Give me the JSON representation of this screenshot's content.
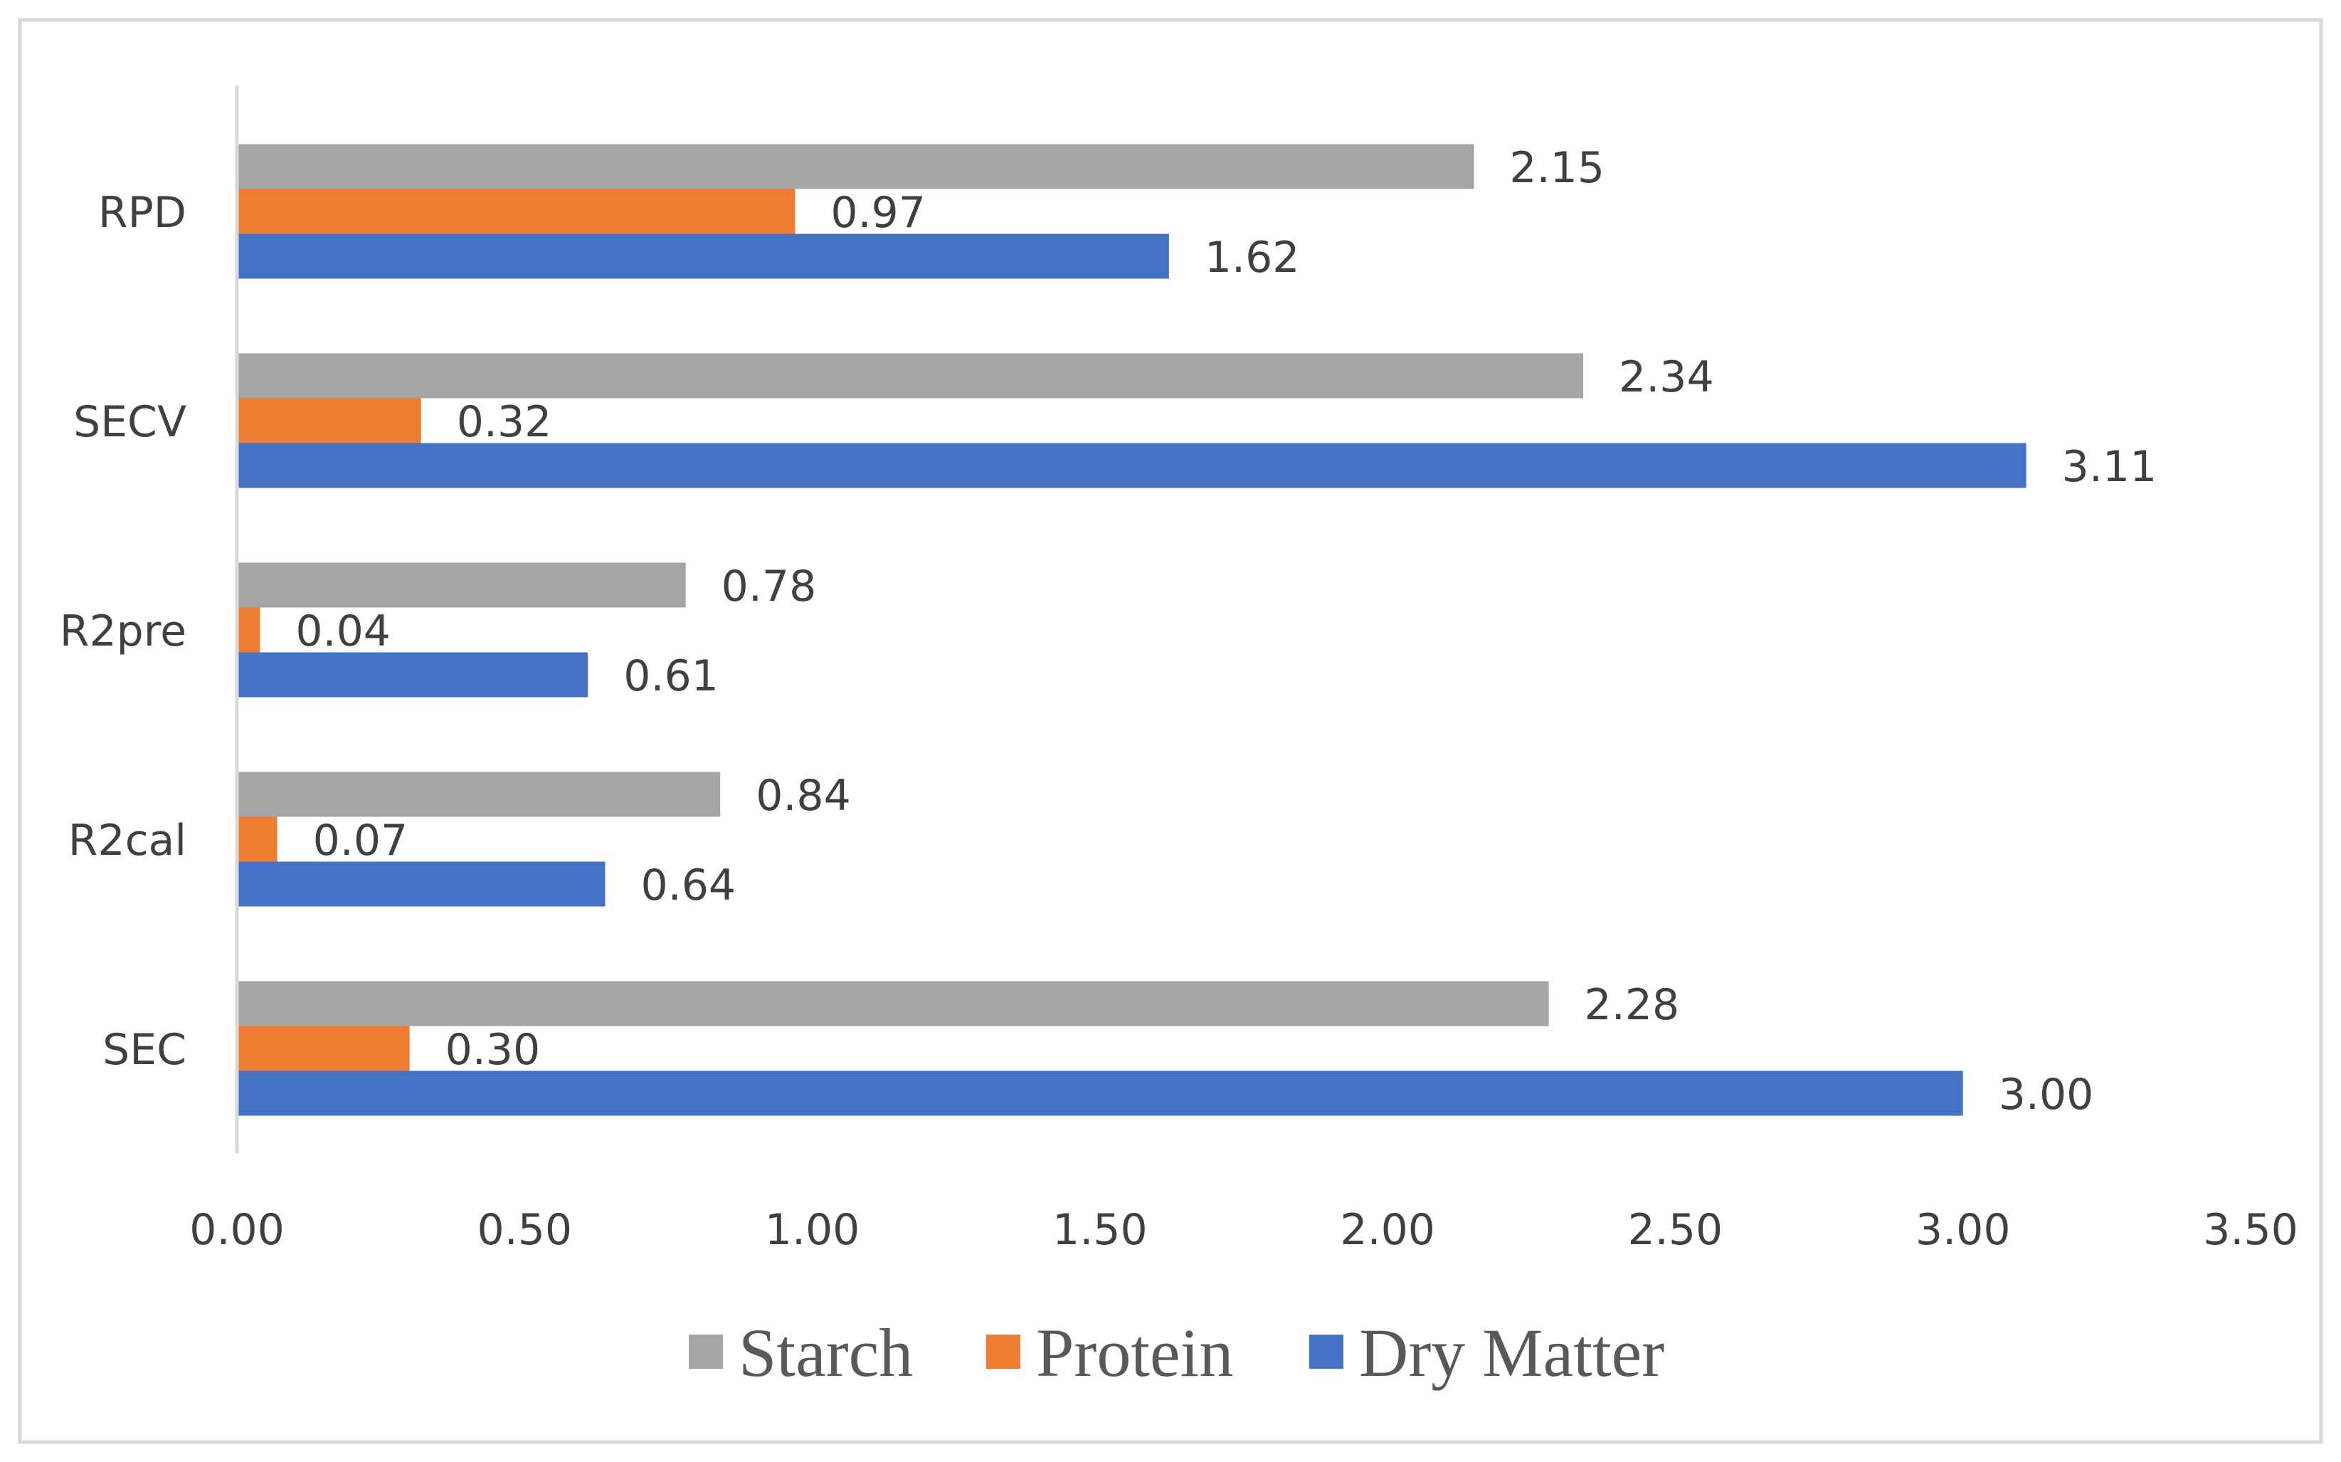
{
  "chart_data": {
    "type": "bar",
    "orientation": "horizontal",
    "title": "",
    "xlabel": "",
    "ylabel": "",
    "categories": [
      "SEC",
      "R2cal",
      "R2pre",
      "SECV",
      "RPD"
    ],
    "xlim": [
      0,
      3.5
    ],
    "x_ticks": [
      "0.00",
      "0.50",
      "1.00",
      "1.50",
      "2.00",
      "2.50",
      "3.00",
      "3.50"
    ],
    "gridlines": false,
    "legend_position": "bottom",
    "series": [
      {
        "name": "Starch",
        "color": "#a5a5a5",
        "values": [
          2.28,
          0.84,
          0.78,
          2.34,
          2.15
        ],
        "labels": [
          "2.28",
          "0.84",
          "0.78",
          "2.34",
          "2.15"
        ]
      },
      {
        "name": "Protein",
        "color": "#ed7d31",
        "values": [
          0.3,
          0.07,
          0.04,
          0.32,
          0.97
        ],
        "labels": [
          "0.30",
          "0.07",
          "0.04",
          "0.32",
          "0.97"
        ]
      },
      {
        "name": "Dry Matter",
        "color": "#4472c4",
        "values": [
          3.0,
          0.64,
          0.61,
          3.11,
          1.62
        ],
        "labels": [
          "3.00",
          "0.64",
          "0.61",
          "3.11",
          "1.62"
        ]
      }
    ]
  }
}
